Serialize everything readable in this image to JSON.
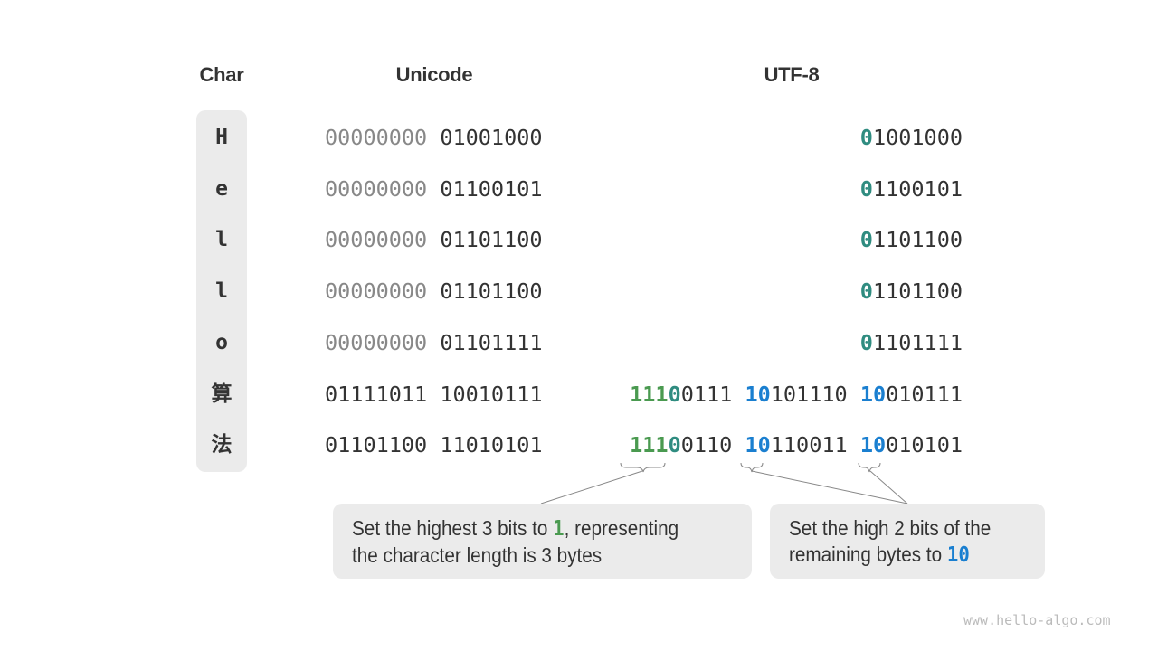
{
  "headers": {
    "char": "Char",
    "unicode": "Unicode",
    "utf8": "UTF-8"
  },
  "colors": {
    "lead_bits_green": "#4a9a50",
    "zero_marker_teal": "#2f8c80",
    "continuation_blue": "#1a7fd0",
    "prefix_gray": "#888888"
  },
  "rows": [
    {
      "char": "H",
      "unicode_high": "00000000",
      "unicode_low": "01001000",
      "utf8": [
        {
          "t": "0",
          "c": "teal"
        },
        {
          "t": "1001000"
        }
      ]
    },
    {
      "char": "e",
      "unicode_high": "00000000",
      "unicode_low": "01100101",
      "utf8": [
        {
          "t": "0",
          "c": "teal"
        },
        {
          "t": "1100101"
        }
      ]
    },
    {
      "char": "l",
      "unicode_high": "00000000",
      "unicode_low": "01101100",
      "utf8": [
        {
          "t": "0",
          "c": "teal"
        },
        {
          "t": "1101100"
        }
      ]
    },
    {
      "char": "l",
      "unicode_high": "00000000",
      "unicode_low": "01101100",
      "utf8": [
        {
          "t": "0",
          "c": "teal"
        },
        {
          "t": "1101100"
        }
      ]
    },
    {
      "char": "o",
      "unicode_high": "00000000",
      "unicode_low": "01101111",
      "utf8": [
        {
          "t": "0",
          "c": "teal"
        },
        {
          "t": "1101111"
        }
      ]
    },
    {
      "char": "算",
      "unicode_high": "01111011",
      "unicode_low": "10010111",
      "utf8": [
        {
          "t": "111",
          "c": "green"
        },
        {
          "t": "0",
          "c": "teal"
        },
        {
          "t": "0111 "
        },
        {
          "t": "10",
          "c": "blue"
        },
        {
          "t": "101110 "
        },
        {
          "t": "10",
          "c": "blue"
        },
        {
          "t": "010111"
        }
      ]
    },
    {
      "char": "法",
      "unicode_high": "01101100",
      "unicode_low": "11010101",
      "utf8": [
        {
          "t": "111",
          "c": "green"
        },
        {
          "t": "0",
          "c": "teal"
        },
        {
          "t": "0110 "
        },
        {
          "t": "10",
          "c": "blue"
        },
        {
          "t": "110011 "
        },
        {
          "t": "10",
          "c": "blue"
        },
        {
          "t": "010101"
        }
      ]
    }
  ],
  "callouts": [
    {
      "before": "Set the highest 3 bits to ",
      "highlight": "1",
      "after": ", representing",
      "line2": "the character length is 3 bytes"
    },
    {
      "line1": "Set the high 2 bits of the",
      "before": "remaining bytes to ",
      "highlight": "10"
    }
  ],
  "watermark": "www.hello-algo.com"
}
